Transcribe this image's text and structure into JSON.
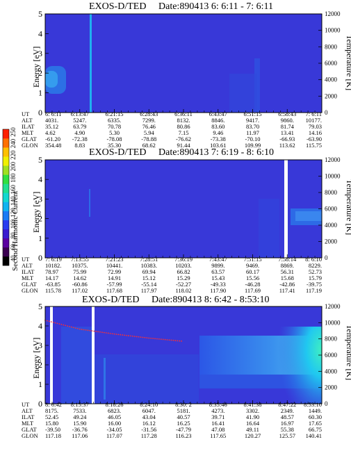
{
  "figure": {
    "colorbar": {
      "label": "Second Harmonic Current",
      "ticks": [
        "40",
        "60",
        "80",
        "100",
        "120",
        "140",
        "160",
        "180",
        "200",
        "220",
        "240",
        "250"
      ],
      "colors": [
        "#000000",
        "#3a0050",
        "#5a00a0",
        "#3a1ad0",
        "#2a3cf0",
        "#1a7cf5",
        "#10b4f0",
        "#12d8d0",
        "#20e090",
        "#30e040",
        "#a0e020",
        "#f0f000",
        "#ffc000",
        "#ff7000",
        "#ff2000"
      ]
    },
    "colors": {
      "background": "#3a3ad8",
      "panel_bg": "#3636d8",
      "gap": "#ffffff",
      "trace": "#000000",
      "dots": "#ff3030"
    },
    "orbit_labels": [
      "UT",
      "ALT",
      "ILAT",
      "MLT",
      "GLAT",
      "GLON"
    ],
    "panels": [
      {
        "title": "EXOS-D/TED",
        "date": "Date:890413  6: 6:11 - 7: 6:11",
        "ylabel": "Energy [eV]",
        "y2label": "Temperature [K]",
        "yticks": [
          "0",
          "1",
          "2",
          "3",
          "4",
          "5"
        ],
        "y2ticks": [
          "0",
          "2000",
          "4000",
          "6000",
          "8000",
          "10000",
          "12000"
        ],
        "columns": [
          [
            "6: 6:11",
            "4031.",
            "35.12",
            "4.62",
            "-61.20",
            "354.48"
          ],
          [
            "6:13:47",
            "5247.",
            "63.79",
            "4.90",
            "-72.38",
            "8.83"
          ],
          [
            "6:21:15",
            "6335.",
            "70.78",
            "5.30",
            "-78.08",
            "35.30"
          ],
          [
            "6:28:43",
            "7299.",
            "76.46",
            "5.94",
            "-78.88",
            "68.62"
          ],
          [
            "6:36:11",
            "8132.",
            "80.86",
            "7.15",
            "-76.62",
            "91.44"
          ],
          [
            "6:43:47",
            "8846.",
            "83.60",
            "9.46",
            "-73.38",
            "103.61"
          ],
          [
            "6:51:15",
            "9417.",
            "83.70",
            "11.97",
            "-70.10",
            "109.99"
          ],
          [
            "6:58:43",
            "9860.",
            "81.74",
            "13.41",
            "-66.93",
            "113.62"
          ],
          [
            "7: 6:11",
            "10177.",
            "79.03",
            "14.16",
            "-63.90",
            "115.75"
          ]
        ]
      },
      {
        "title": "EXOS-D/TED",
        "date": "Date:890413  7: 6:19 - 8: 6:10",
        "ylabel": "Energy [eV]",
        "y2label": "Temperature [K]",
        "yticks": [
          "0",
          "1",
          "2",
          "3",
          "4",
          "5"
        ],
        "y2ticks": [
          "0",
          "2000",
          "4000",
          "6000",
          "8000",
          "10000",
          "12000"
        ],
        "columns": [
          [
            "7: 6:19",
            "10182.",
            "78.97",
            "14.17",
            "-63.85",
            "115.78"
          ],
          [
            "7:13:55",
            "10375.",
            "75.99",
            "14.62",
            "-60.86",
            "117.02"
          ],
          [
            "7:21:23",
            "10441.",
            "72.99",
            "14.91",
            "-57.99",
            "117.68"
          ],
          [
            "7:28:51",
            "10383.",
            "69.94",
            "15.12",
            "-55.14",
            "117.97"
          ],
          [
            "7:36:19",
            "10203.",
            "66.82",
            "15.29",
            "-52.27",
            "118.02"
          ],
          [
            "7:43:47",
            "9899.",
            "63.57",
            "15.43",
            "-49.33",
            "117.90"
          ],
          [
            "7:51:15",
            "9469.",
            "60.17",
            "15.56",
            "-46.28",
            "117.69"
          ],
          [
            "7:58:14",
            "8869.",
            "56.31",
            "15.68",
            "-42.86",
            "117.41"
          ],
          [
            "8: 6:10",
            "8229.",
            "52.73",
            "15.79",
            "-39.75",
            "117.19"
          ]
        ]
      },
      {
        "title": "EXOS-D/TED",
        "date": "Date:890413  8: 6:42 - 8:53:10",
        "ylabel": "Energy [eV]",
        "y2label": "Temperature [K]",
        "yticks": [
          "0",
          "1",
          "2",
          "3",
          "4",
          "5"
        ],
        "y2ticks": [
          "0",
          "2000",
          "4000",
          "6000",
          "8000",
          "10000",
          "12000"
        ],
        "columns": [
          [
            "8: 6:42",
            "8175.",
            "52.45",
            "15.80",
            "-39.50",
            "117.18"
          ],
          [
            "8:15:37",
            "7533.",
            "49.24",
            "15.90",
            "-36.76",
            "117.06"
          ],
          [
            "8:18:26",
            "6823.",
            "46.05",
            "16.00",
            "-34.05",
            "117.07"
          ],
          [
            "8:24:10",
            "6047.",
            "43.04",
            "16.12",
            "-31.56",
            "117.28"
          ],
          [
            "8:30: 2",
            "5181.",
            "40.57",
            "16.25",
            "-47.79",
            "116.23"
          ],
          [
            "8:35:46",
            "4273.",
            "39.71",
            "16.41",
            "47.08",
            "117.65"
          ],
          [
            "8:41:38",
            "3302.",
            "41.90",
            "16.64",
            "49.11",
            "120.27"
          ],
          [
            "8:47:22",
            "2349.",
            "48.57",
            "16.97",
            "55.38",
            "125.57"
          ],
          [
            "8:53:10",
            "1449.",
            "60.30",
            "17.65",
            "66.75",
            "140.41"
          ]
        ]
      }
    ]
  },
  "chart_data": [
    {
      "type": "heatmap",
      "title": "EXOS-D/TED  Date:890413  6: 6:11 - 7: 6:11",
      "xlabel": "UT",
      "ylabel": "Energy [eV]",
      "y2label": "Temperature [K]",
      "ylim": [
        0,
        5
      ],
      "y2lim": [
        0,
        12000
      ],
      "x_categories": [
        "6: 6:11",
        "6:13:47",
        "6:21:15",
        "6:28:43",
        "6:36:11",
        "6:43:47",
        "6:51:15",
        "6:58:43",
        "7: 6:11"
      ],
      "features": [
        {
          "kind": "enhancement",
          "ut": "6: 6:11",
          "energy_range": [
            0.6,
            2.3
          ],
          "level": "110-140"
        },
        {
          "kind": "vertical-streak",
          "ut": "6:13:47",
          "energy_range": [
            0,
            5
          ],
          "level": "140-160"
        }
      ]
    },
    {
      "type": "heatmap",
      "title": "EXOS-D/TED  Date:890413  7: 6:19 - 8: 6:10",
      "xlabel": "UT",
      "ylabel": "Energy [eV]",
      "y2label": "Temperature [K]",
      "ylim": [
        0,
        5
      ],
      "y2lim": [
        0,
        12000
      ],
      "x_categories": [
        "7: 6:19",
        "7:13:55",
        "7:21:23",
        "7:28:51",
        "7:36:19",
        "7:43:47",
        "7:51:15",
        "7:58:14",
        "8: 6:10"
      ],
      "features": [
        {
          "kind": "data-gap",
          "ut": "7:58:14"
        },
        {
          "kind": "enhancement",
          "ut": "8: 6:10",
          "energy_range": [
            1.0,
            2.5
          ],
          "level": "100-120"
        }
      ]
    },
    {
      "type": "heatmap",
      "title": "EXOS-D/TED  Date:890413  8: 6:42 - 8:53:10",
      "xlabel": "UT",
      "ylabel": "Energy [eV]",
      "y2label": "Temperature [K]",
      "ylim": [
        0,
        5
      ],
      "y2lim": [
        0,
        12000
      ],
      "x_categories": [
        "8: 6:42",
        "8:15:37",
        "8:18:26",
        "8:24:10",
        "8:30: 2",
        "8:35:46",
        "8:41:38",
        "8:47:22",
        "8:53:10"
      ],
      "features": [
        {
          "kind": "data-gap",
          "ut": "8: 6:42"
        },
        {
          "kind": "data-gap",
          "ut": "8:15:37"
        },
        {
          "kind": "broadband",
          "ut_range": [
            "8:35:46",
            "8:53:10"
          ],
          "energy_range": [
            0.8,
            3.3
          ],
          "level": "100-140"
        },
        {
          "kind": "enhancement",
          "ut": "8:53:10",
          "energy_range": [
            0,
            3.2
          ],
          "level": "140-180"
        }
      ],
      "temperature_trace": {
        "ut": [
          "8: 6:42",
          "8:15:37",
          "8:18:26",
          "8:24:10",
          "8:30: 2"
        ],
        "temperature_k": [
          10300,
          9200,
          8600,
          8100,
          7700
        ]
      }
    }
  ]
}
